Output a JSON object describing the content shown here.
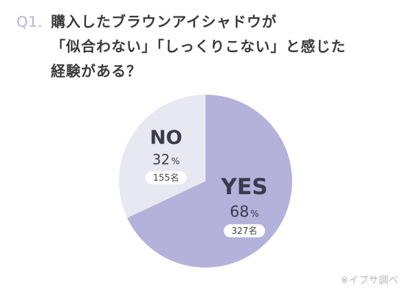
{
  "question": {
    "number": "Q1.",
    "lines": [
      "購入したブラウンアイシャドウが",
      "「似合わない」「しっくりこない」と感じた",
      "経験がある？"
    ]
  },
  "chart_data": {
    "type": "pie",
    "title": "",
    "slices": [
      {
        "label": "YES",
        "percent": 68,
        "percent_unit": "%",
        "count": 327,
        "count_unit": "名",
        "color": "#b4b2da"
      },
      {
        "label": "NO",
        "percent": 32,
        "percent_unit": "%",
        "count": 155,
        "count_unit": "名",
        "color": "#e8e8f2"
      }
    ],
    "start_angle_deg": 0,
    "direction": "clockwise",
    "legend": "none"
  },
  "colors": {
    "label_text": "#3b3b4e",
    "badge_bg": "#ffffff",
    "badge_text": "#444444"
  },
  "source": "※イプサ調べ"
}
